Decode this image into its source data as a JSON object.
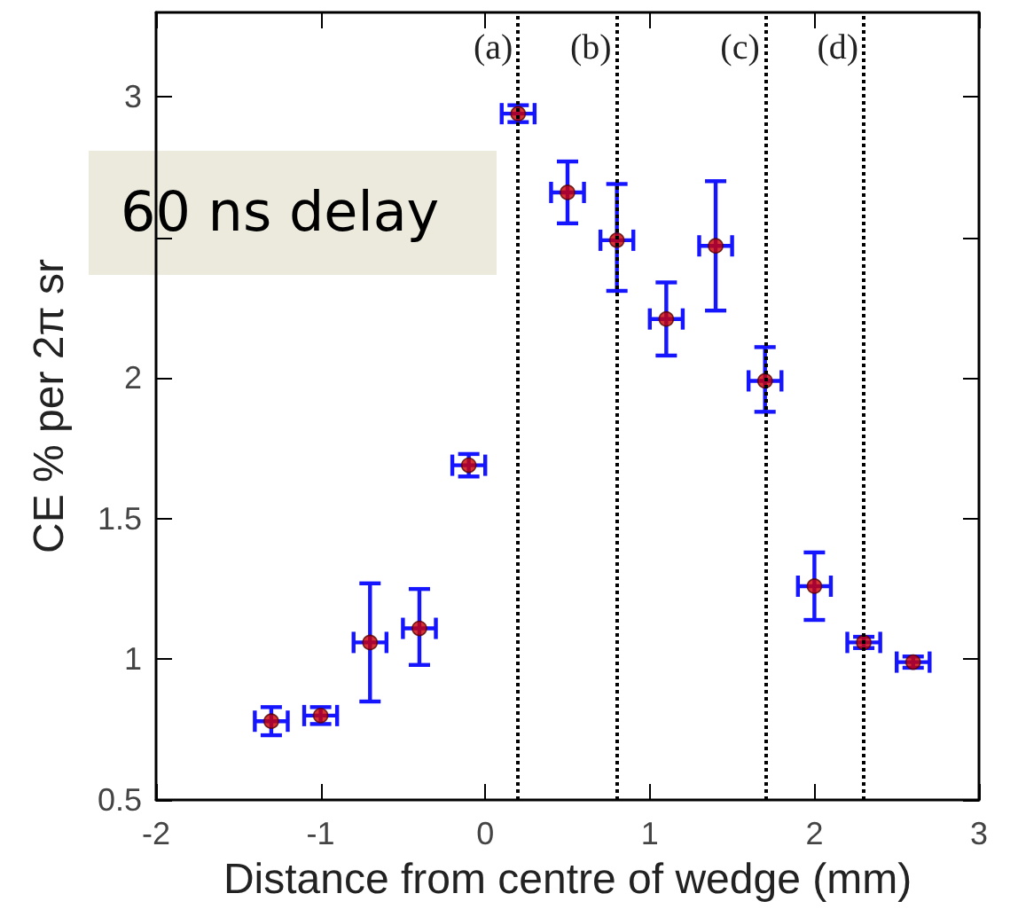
{
  "chart_data": {
    "type": "scatter",
    "xlabel": "Distance from centre of wedge (mm)",
    "ylabel": "CE % per 2π sr",
    "annotations": [
      "60 ns delay"
    ],
    "x": [
      -1.3,
      -1.0,
      -0.7,
      -0.4,
      -0.1,
      0.2,
      0.5,
      0.8,
      1.1,
      1.4,
      1.7,
      2.0,
      2.3,
      2.6
    ],
    "series": [
      {
        "color": "#cc0000",
        "values": [
          0.78,
          0.8,
          1.06,
          1.11,
          1.69,
          2.94,
          2.66,
          2.49,
          2.21,
          2.47,
          1.99,
          1.26,
          1.06,
          0.99
        ],
        "errors": [
          0.05,
          0.03,
          [
            0.85,
            1.27
          ],
          [
            0.98,
            1.25
          ],
          0.04,
          0.03,
          [
            2.55,
            2.77
          ],
          [
            2.31,
            2.69
          ],
          [
            2.08,
            2.34
          ],
          [
            2.24,
            2.7
          ],
          [
            1.88,
            2.11
          ],
          [
            1.14,
            1.38
          ],
          0.02,
          0.02
        ],
        "xerrors": [
          0.1,
          0.1,
          0.1,
          0.1,
          0.1,
          0.1,
          0.1,
          0.1,
          0.1,
          0.1,
          0.1,
          0.1,
          0.1,
          0.1
        ]
      }
    ],
    "xlim": [
      -2,
      3
    ],
    "xticks": [
      -2,
      -1,
      0,
      1,
      2,
      3
    ],
    "ylim": [
      0.5,
      3.3
    ],
    "yticks": [
      0.5,
      1,
      1.5,
      2,
      {
        "value": 2.5,
        "label": null
      },
      3
    ],
    "ref_lines": [
      {
        "axis": "x",
        "value": 0.2,
        "label": "(a)",
        "line_style": "dotted"
      },
      {
        "axis": "x",
        "value": 0.8,
        "label": "(b)",
        "line_style": "dotted"
      },
      {
        "axis": "x",
        "value": 1.7,
        "label": "(c)",
        "line_style": "dotted"
      },
      {
        "axis": "x",
        "value": 2.3,
        "label": "(d)",
        "line_style": "dotted"
      }
    ],
    "marker": "circle",
    "grid": false
  }
}
